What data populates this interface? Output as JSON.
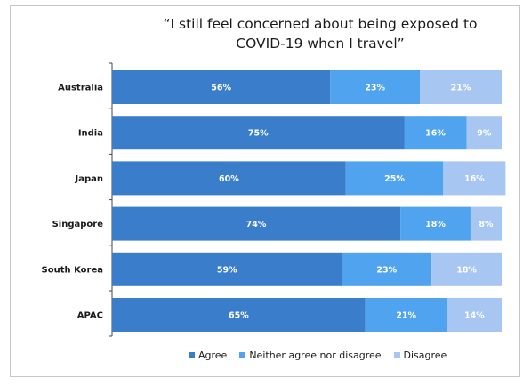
{
  "chart_data": {
    "type": "bar",
    "orientation": "horizontal",
    "stacked": true,
    "title": "“I still feel concerned about being exposed to\nCOVID-19 when I travel”",
    "categories": [
      "Australia",
      "India",
      "Japan",
      "Singapore",
      "South Korea",
      "APAC"
    ],
    "series": [
      {
        "name": "Agree",
        "color": "#3a7ecb",
        "values": [
          56,
          75,
          60,
          74,
          59,
          65
        ],
        "labels": [
          "56%",
          "75%",
          "60%",
          "74%",
          "59%",
          "65%"
        ]
      },
      {
        "name": "Neither agree nor disagree",
        "color": "#4fa3ef",
        "values": [
          23,
          16,
          25,
          18,
          23,
          21
        ],
        "labels": [
          "23%",
          "16%",
          "25%",
          "18%",
          "23%",
          "21%"
        ]
      },
      {
        "name": "Disagree",
        "color": "#a7c6f2",
        "values": [
          21,
          9,
          16,
          8,
          18,
          14
        ],
        "labels": [
          "21%",
          "9%",
          "16%",
          "8%",
          "18%",
          "14%"
        ]
      }
    ],
    "xlim": [
      0,
      100
    ],
    "grid": false,
    "legend_position": "bottom"
  }
}
